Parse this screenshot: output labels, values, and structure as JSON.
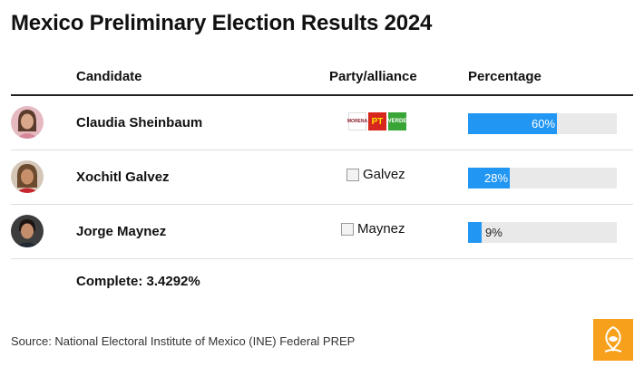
{
  "title": "Mexico Preliminary Election Results 2024",
  "columns": {
    "candidate": "Candidate",
    "party": "Party/alliance",
    "percentage": "Percentage"
  },
  "rows": [
    {
      "name": "Claudia Sheinbaum",
      "party_alt": "",
      "party_logos": [
        "MORENA",
        "PT",
        "VERDE"
      ],
      "value": 60,
      "label": "60%"
    },
    {
      "name": "Xochitl Galvez",
      "party_alt": "Galvez",
      "value": 28,
      "label": "28%"
    },
    {
      "name": "Jorge Maynez",
      "party_alt": "Maynez",
      "value": 9,
      "label": "9%"
    }
  ],
  "complete_text": "Complete: 3.4292%",
  "source_text": "Source: National Electoral Institute of Mexico (INE) Federal PREP",
  "colors": {
    "bar": "#2196f3",
    "track": "#e9e9e9",
    "brand": "#f6a01b",
    "logo_morena": "#8b1c2c",
    "logo_pt": "#d7261e",
    "logo_verde": "#3aa537"
  },
  "chart_data": {
    "type": "bar",
    "categories": [
      "Claudia Sheinbaum",
      "Xochitl Galvez",
      "Jorge Maynez"
    ],
    "values": [
      60,
      28,
      9
    ],
    "title": "Mexico Preliminary Election Results 2024",
    "xlabel": "",
    "ylabel": "Percentage",
    "ylim": [
      0,
      100
    ]
  }
}
